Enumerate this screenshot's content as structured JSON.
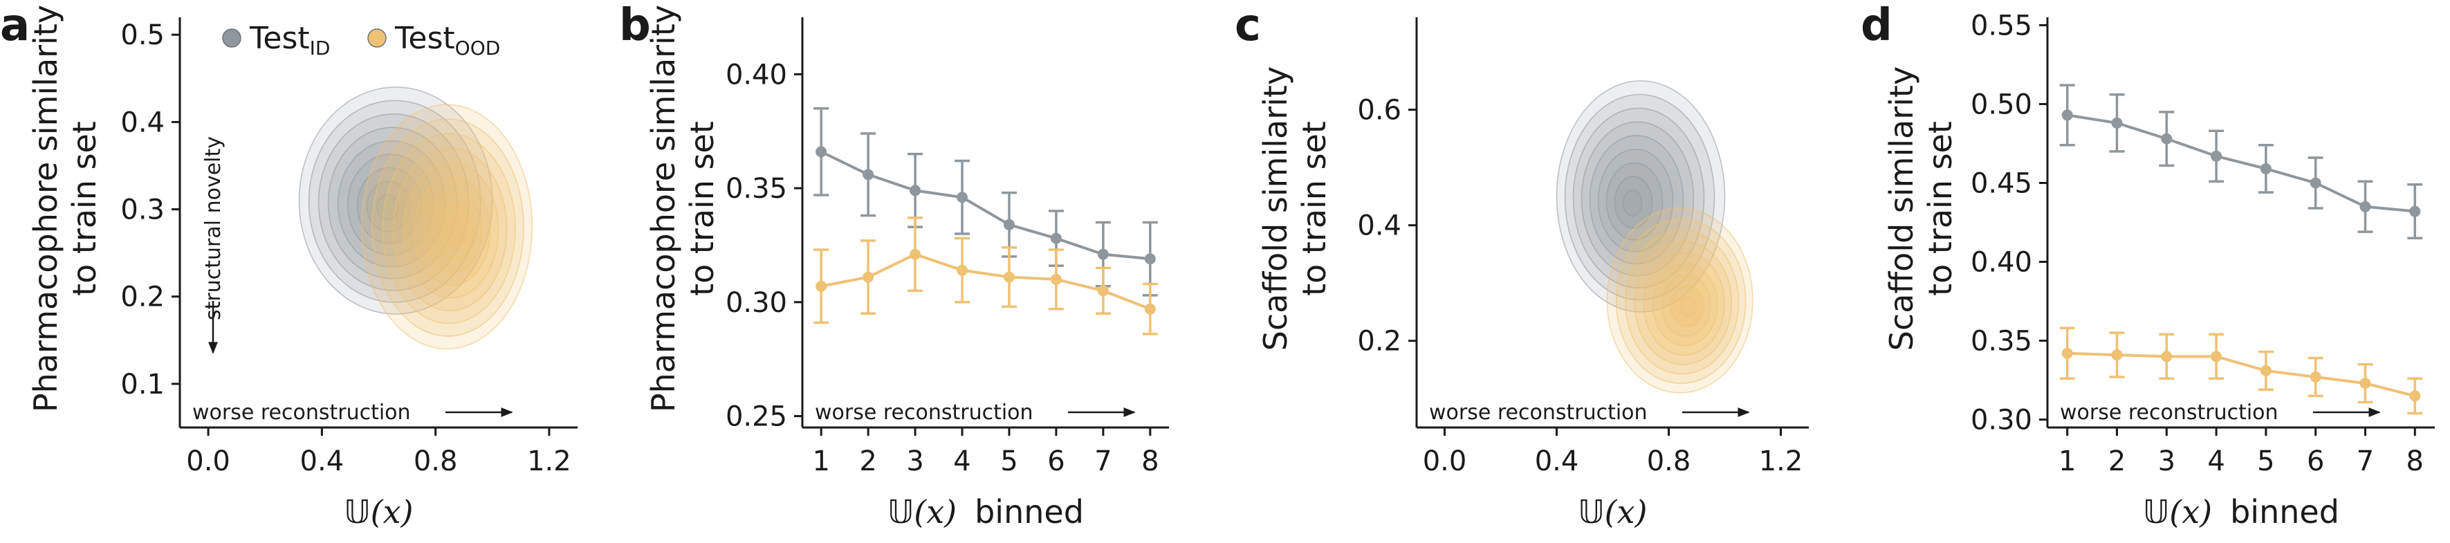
{
  "colors": {
    "id": "#8f979d",
    "ood": "#efc173",
    "axis": "#1a1a1a"
  },
  "legend": {
    "id_main": "Test",
    "id_sub": "ID",
    "ood_main": "Test",
    "ood_sub": "OOD"
  },
  "math": {
    "U_symbol": "𝕌",
    "paren_x": "(x)"
  },
  "chart_data": [
    {
      "panel": "a",
      "type": "scatter",
      "subtype": "kde-contour",
      "xlabel": "𝕌(x)",
      "ylabel_lines": [
        "Pharmacophore similarity",
        "to train set"
      ],
      "xlim": [
        -0.1,
        1.3
      ],
      "ylim": [
        0.05,
        0.52
      ],
      "xticks": [
        "0.0",
        "0.4",
        "0.8",
        "1.2"
      ],
      "xtick_values": [
        0.0,
        0.4,
        0.8,
        1.2
      ],
      "yticks": [
        "0.1",
        "0.2",
        "0.3",
        "0.4",
        "0.5"
      ],
      "ytick_values": [
        0.1,
        0.2,
        0.3,
        0.4,
        0.5
      ],
      "annotations": {
        "x_arrow": "worse reconstruction",
        "y_arrow": "structural novelty"
      },
      "series": [
        {
          "name": "Test_ID",
          "center": [
            0.66,
            0.31
          ],
          "spread": [
            0.34,
            0.13
          ]
        },
        {
          "name": "Test_OOD",
          "center": [
            0.84,
            0.28
          ],
          "spread": [
            0.3,
            0.14
          ]
        }
      ]
    },
    {
      "panel": "b",
      "type": "line",
      "xlabel_suffix": "binned",
      "ylabel_lines": [
        "Pharmacophore similarity",
        "to train set"
      ],
      "categories": [
        "1",
        "2",
        "3",
        "4",
        "5",
        "6",
        "7",
        "8"
      ],
      "x": [
        1,
        2,
        3,
        4,
        5,
        6,
        7,
        8
      ],
      "ylim": [
        0.245,
        0.425
      ],
      "yticks": [
        "0.25",
        "0.30",
        "0.35",
        "0.40"
      ],
      "ytick_values": [
        0.25,
        0.3,
        0.35,
        0.4
      ],
      "annotations": {
        "x_arrow": "worse reconstruction"
      },
      "series": [
        {
          "name": "Test_ID",
          "values": [
            0.366,
            0.356,
            0.349,
            0.346,
            0.334,
            0.328,
            0.321,
            0.319
          ],
          "err": [
            0.019,
            0.018,
            0.016,
            0.016,
            0.014,
            0.012,
            0.014,
            0.016
          ]
        },
        {
          "name": "Test_OOD",
          "values": [
            0.307,
            0.311,
            0.321,
            0.314,
            0.311,
            0.31,
            0.305,
            0.297
          ],
          "err": [
            0.016,
            0.016,
            0.016,
            0.014,
            0.013,
            0.013,
            0.01,
            0.011
          ]
        }
      ]
    },
    {
      "panel": "c",
      "type": "scatter",
      "subtype": "kde-contour",
      "xlabel": "𝕌(x)",
      "ylabel_lines": [
        "Scaffold similarity",
        "to train set"
      ],
      "xlim": [
        -0.1,
        1.3
      ],
      "ylim": [
        0.05,
        0.76
      ],
      "xticks": [
        "0.0",
        "0.4",
        "0.8",
        "1.2"
      ],
      "xtick_values": [
        0.0,
        0.4,
        0.8,
        1.2
      ],
      "yticks": [
        "0.2",
        "0.4",
        "0.6"
      ],
      "ytick_values": [
        0.2,
        0.4,
        0.6
      ],
      "annotations": {
        "x_arrow": "worse reconstruction"
      },
      "series": [
        {
          "name": "Test_ID",
          "center": [
            0.7,
            0.45
          ],
          "spread": [
            0.3,
            0.2
          ]
        },
        {
          "name": "Test_OOD",
          "center": [
            0.84,
            0.27
          ],
          "spread": [
            0.26,
            0.16
          ]
        }
      ]
    },
    {
      "panel": "d",
      "type": "line",
      "xlabel_suffix": "binned",
      "ylabel_lines": [
        "Scaffold similarity",
        "to train set"
      ],
      "categories": [
        "1",
        "2",
        "3",
        "4",
        "5",
        "6",
        "7",
        "8"
      ],
      "x": [
        1,
        2,
        3,
        4,
        5,
        6,
        7,
        8
      ],
      "ylim": [
        0.295,
        0.555
      ],
      "yticks": [
        "0.30",
        "0.35",
        "0.40",
        "0.45",
        "0.50",
        "0.55"
      ],
      "ytick_values": [
        0.3,
        0.35,
        0.4,
        0.45,
        0.5,
        0.55
      ],
      "annotations": {
        "x_arrow": "worse reconstruction"
      },
      "series": [
        {
          "name": "Test_ID",
          "values": [
            0.493,
            0.488,
            0.478,
            0.467,
            0.459,
            0.45,
            0.435,
            0.432
          ],
          "err": [
            0.019,
            0.018,
            0.017,
            0.016,
            0.015,
            0.016,
            0.016,
            0.017
          ]
        },
        {
          "name": "Test_OOD",
          "values": [
            0.342,
            0.341,
            0.34,
            0.34,
            0.331,
            0.327,
            0.323,
            0.315
          ],
          "err": [
            0.016,
            0.014,
            0.014,
            0.014,
            0.012,
            0.012,
            0.012,
            0.011
          ]
        }
      ]
    }
  ]
}
